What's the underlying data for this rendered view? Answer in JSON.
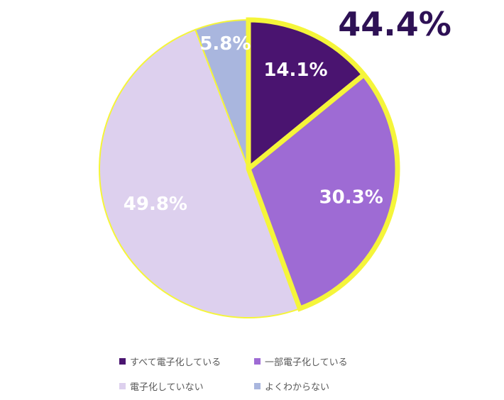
{
  "chart_data": {
    "type": "pie",
    "title": "",
    "highlight_label": "44.4%",
    "highlight_color": "#F5F53A",
    "slices": [
      {
        "name": "すべて電子化している",
        "value": 14.1,
        "label": "14.1%",
        "color": "#4A1470",
        "label_color": "#FFFFFF"
      },
      {
        "name": "一部電子化している",
        "value": 30.3,
        "label": "30.3%",
        "color": "#9E6BD4",
        "label_color": "#FFFFFF"
      },
      {
        "name": "電子化していない",
        "value": 49.8,
        "label": "49.8%",
        "color": "#DDD0EE",
        "label_color": "#FFFFFF"
      },
      {
        "name": "よくわからない",
        "value": 5.8,
        "label": "5.8%",
        "color": "#A9B6DE",
        "label_color": "#FFFFFF"
      }
    ],
    "legend_position": "bottom",
    "highlighted_slices": [
      "すべて電子化している",
      "一部電子化している"
    ]
  }
}
